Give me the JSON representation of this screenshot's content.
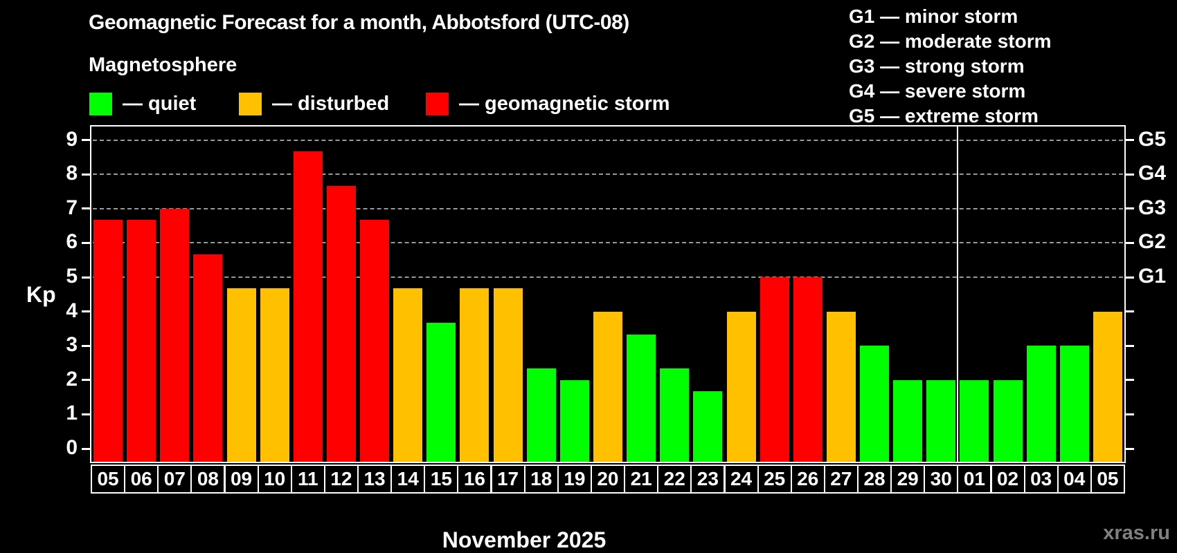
{
  "header": {
    "title": "Geomagnetic Forecast for a month, Abbotsford (UTC-08)",
    "subtitle": "Magnetosphere"
  },
  "legend": {
    "items": [
      {
        "name": "quiet",
        "label": "— quiet",
        "color": "#00FF00"
      },
      {
        "name": "disturbed",
        "label": "— disturbed",
        "color": "#FFC000"
      },
      {
        "name": "storm",
        "label": "— geomagnetic storm",
        "color": "#FF0000"
      }
    ]
  },
  "storm_scale_legend": {
    "lines": [
      "G1 — minor storm",
      "G2 — moderate storm",
      "G3 — strong storm",
      "G4 — severe storm",
      "G5 — extreme storm"
    ]
  },
  "footer": {
    "month_label": "November 2025",
    "watermark": "xras.ru"
  },
  "chart_data": {
    "type": "bar",
    "title": "Geomagnetic Forecast for a month, Abbotsford (UTC-08)",
    "ylabel": "Kp",
    "ylim": [
      0,
      9
    ],
    "y_ticks": [
      0,
      1,
      2,
      3,
      4,
      5,
      6,
      7,
      8,
      9
    ],
    "gridlines_at_kp": [
      5,
      6,
      7,
      8,
      9
    ],
    "right_axis_labels": [
      {
        "kp": 5,
        "label": "G1"
      },
      {
        "kp": 6,
        "label": "G2"
      },
      {
        "kp": 7,
        "label": "G3"
      },
      {
        "kp": 8,
        "label": "G4"
      },
      {
        "kp": 9,
        "label": "G5"
      }
    ],
    "status_colors": {
      "quiet": "#00FF00",
      "disturbed": "#FFC000",
      "storm": "#FF0000"
    },
    "month_separator_before_index": 26,
    "bars": [
      {
        "day": "05",
        "kp": 6.67,
        "status": "storm"
      },
      {
        "day": "06",
        "kp": 6.67,
        "status": "storm"
      },
      {
        "day": "07",
        "kp": 7.0,
        "status": "storm"
      },
      {
        "day": "08",
        "kp": 5.67,
        "status": "storm"
      },
      {
        "day": "09",
        "kp": 4.67,
        "status": "disturbed"
      },
      {
        "day": "10",
        "kp": 4.67,
        "status": "disturbed"
      },
      {
        "day": "11",
        "kp": 8.67,
        "status": "storm"
      },
      {
        "day": "12",
        "kp": 7.67,
        "status": "storm"
      },
      {
        "day": "13",
        "kp": 6.67,
        "status": "storm"
      },
      {
        "day": "14",
        "kp": 4.67,
        "status": "disturbed"
      },
      {
        "day": "15",
        "kp": 3.67,
        "status": "quiet"
      },
      {
        "day": "16",
        "kp": 4.67,
        "status": "disturbed"
      },
      {
        "day": "17",
        "kp": 4.67,
        "status": "disturbed"
      },
      {
        "day": "18",
        "kp": 2.33,
        "status": "quiet"
      },
      {
        "day": "19",
        "kp": 2.0,
        "status": "quiet"
      },
      {
        "day": "20",
        "kp": 4.0,
        "status": "disturbed"
      },
      {
        "day": "21",
        "kp": 3.33,
        "status": "quiet"
      },
      {
        "day": "22",
        "kp": 2.33,
        "status": "quiet"
      },
      {
        "day": "23",
        "kp": 1.67,
        "status": "quiet"
      },
      {
        "day": "24",
        "kp": 4.0,
        "status": "disturbed"
      },
      {
        "day": "25",
        "kp": 5.0,
        "status": "storm"
      },
      {
        "day": "26",
        "kp": 5.0,
        "status": "storm"
      },
      {
        "day": "27",
        "kp": 4.0,
        "status": "disturbed"
      },
      {
        "day": "28",
        "kp": 3.0,
        "status": "quiet"
      },
      {
        "day": "29",
        "kp": 2.0,
        "status": "quiet"
      },
      {
        "day": "30",
        "kp": 2.0,
        "status": "quiet"
      },
      {
        "day": "01",
        "kp": 2.0,
        "status": "quiet"
      },
      {
        "day": "02",
        "kp": 2.0,
        "status": "quiet"
      },
      {
        "day": "03",
        "kp": 3.0,
        "status": "quiet"
      },
      {
        "day": "04",
        "kp": 3.0,
        "status": "quiet"
      },
      {
        "day": "05",
        "kp": 4.0,
        "status": "disturbed"
      }
    ]
  }
}
